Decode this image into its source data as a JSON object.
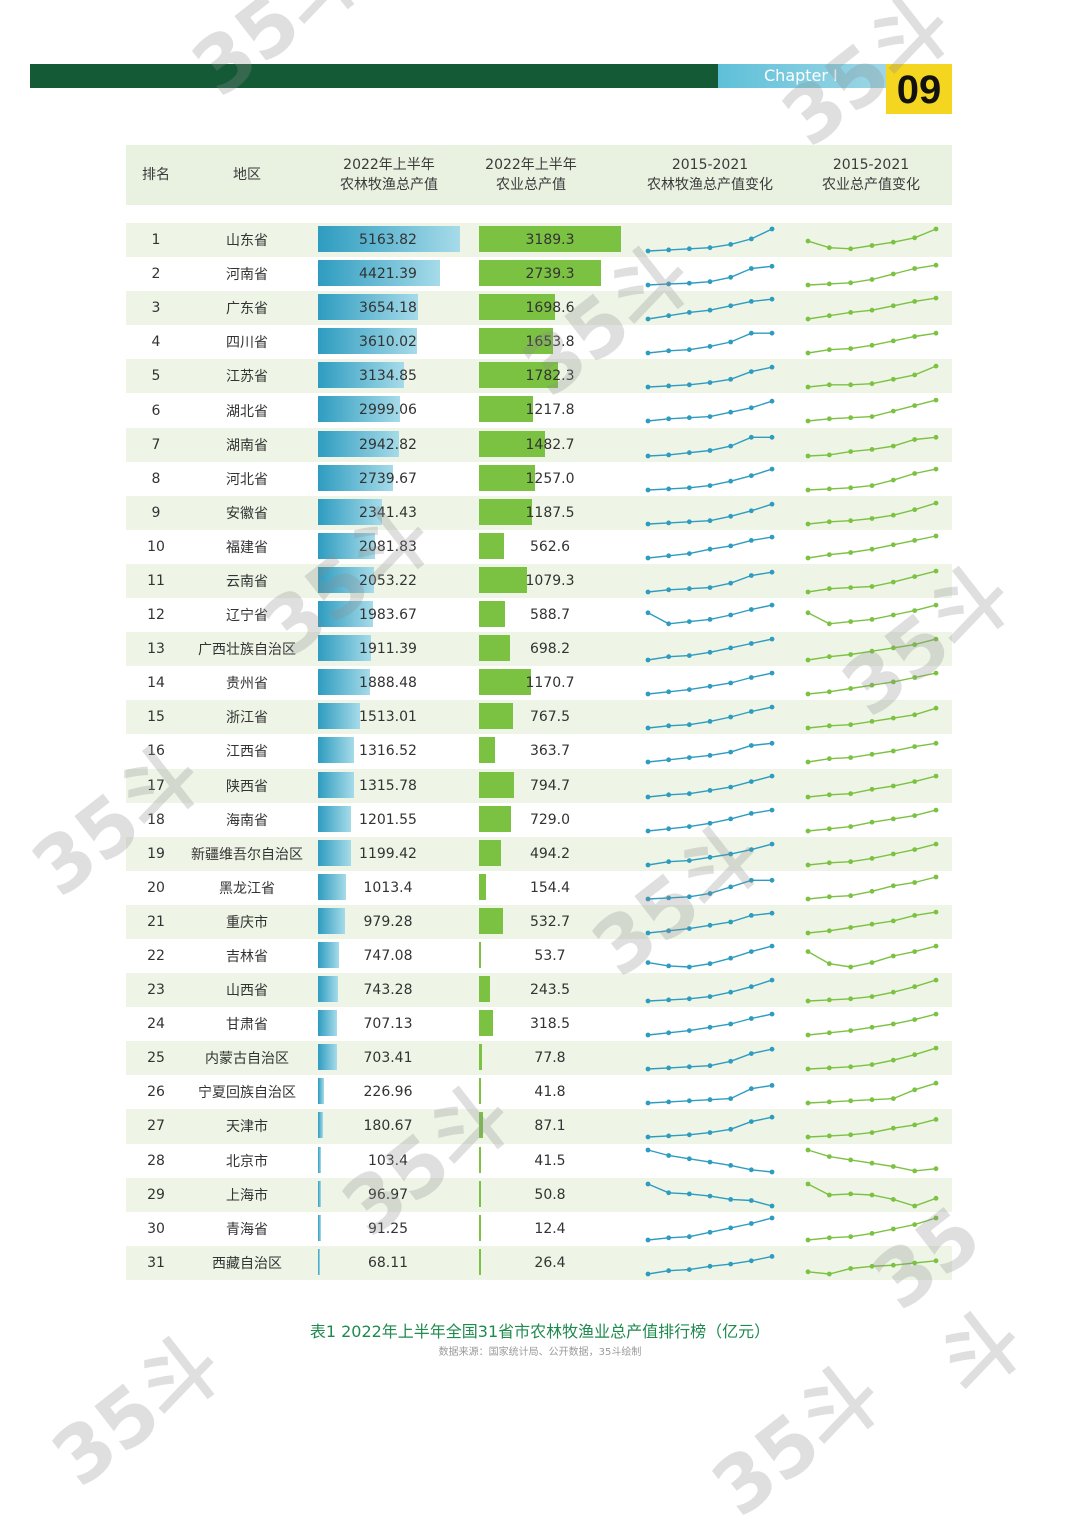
{
  "header": {
    "chapter": "Chapter I",
    "page_number": "09"
  },
  "table": {
    "columns": [
      "排名",
      "地区",
      "2022年上半年\n农林牧渔总产值",
      "2022年上半年\n农业总产值",
      "2015-2021\n农林牧渔总产值变化",
      "2015-2021\n农业总产值变化"
    ],
    "rows": [
      {
        "rank": "1",
        "region": "山东省",
        "total": "5163.82",
        "agri": "3189.3"
      },
      {
        "rank": "2",
        "region": "河南省",
        "total": "4421.39",
        "agri": "2739.3"
      },
      {
        "rank": "3",
        "region": "广东省",
        "total": "3654.18",
        "agri": "1698.6"
      },
      {
        "rank": "4",
        "region": "四川省",
        "total": "3610.02",
        "agri": "1653.8"
      },
      {
        "rank": "5",
        "region": "江苏省",
        "total": "3134.85",
        "agri": "1782.3"
      },
      {
        "rank": "6",
        "region": "湖北省",
        "total": "2999.06",
        "agri": "1217.8"
      },
      {
        "rank": "7",
        "region": "湖南省",
        "total": "2942.82",
        "agri": "1482.7"
      },
      {
        "rank": "8",
        "region": "河北省",
        "total": "2739.67",
        "agri": "1257.0"
      },
      {
        "rank": "9",
        "region": "安徽省",
        "total": "2341.43",
        "agri": "1187.5"
      },
      {
        "rank": "10",
        "region": "福建省",
        "total": "2081.83",
        "agri": "562.6"
      },
      {
        "rank": "11",
        "region": "云南省",
        "total": "2053.22",
        "agri": "1079.3"
      },
      {
        "rank": "12",
        "region": "辽宁省",
        "total": "1983.67",
        "agri": "588.7"
      },
      {
        "rank": "13",
        "region": "广西壮族自治区",
        "total": "1911.39",
        "agri": "698.2"
      },
      {
        "rank": "14",
        "region": "贵州省",
        "total": "1888.48",
        "agri": "1170.7"
      },
      {
        "rank": "15",
        "region": "浙江省",
        "total": "1513.01",
        "agri": "767.5"
      },
      {
        "rank": "16",
        "region": "江西省",
        "total": "1316.52",
        "agri": "363.7"
      },
      {
        "rank": "17",
        "region": "陕西省",
        "total": "1315.78",
        "agri": "794.7"
      },
      {
        "rank": "18",
        "region": "海南省",
        "total": "1201.55",
        "agri": "729.0"
      },
      {
        "rank": "19",
        "region": "新疆维吾尔自治区",
        "total": "1199.42",
        "agri": "494.2"
      },
      {
        "rank": "20",
        "region": "黑龙江省",
        "total": "1013.4",
        "agri": "154.4"
      },
      {
        "rank": "21",
        "region": "重庆市",
        "total": "979.28",
        "agri": "532.7"
      },
      {
        "rank": "22",
        "region": "吉林省",
        "total": "747.08",
        "agri": "53.7"
      },
      {
        "rank": "23",
        "region": "山西省",
        "total": "743.28",
        "agri": "243.5"
      },
      {
        "rank": "24",
        "region": "甘肃省",
        "total": "707.13",
        "agri": "318.5"
      },
      {
        "rank": "25",
        "region": "内蒙古自治区",
        "total": "703.41",
        "agri": "77.8"
      },
      {
        "rank": "26",
        "region": "宁夏回族自治区",
        "total": "226.96",
        "agri": "41.8"
      },
      {
        "rank": "27",
        "region": "天津市",
        "total": "180.67",
        "agri": "87.1"
      },
      {
        "rank": "28",
        "region": "北京市",
        "total": "103.4",
        "agri": "41.5"
      },
      {
        "rank": "29",
        "region": "上海市",
        "total": "96.97",
        "agri": "50.8"
      },
      {
        "rank": "30",
        "region": "青海省",
        "total": "91.25",
        "agri": "12.4"
      },
      {
        "rank": "31",
        "region": "西藏自治区",
        "total": "68.11",
        "agri": "26.4"
      }
    ]
  },
  "chart_data": {
    "type": "table",
    "series": [
      {
        "name": "2022年上半年农林牧渔总产值",
        "values": [
          5163.82,
          4421.39,
          3654.18,
          3610.02,
          3134.85,
          2999.06,
          2942.82,
          2739.67,
          2341.43,
          2081.83,
          2053.22,
          1983.67,
          1911.39,
          1888.48,
          1513.01,
          1316.52,
          1315.78,
          1201.55,
          1199.42,
          1013.4,
          979.28,
          747.08,
          743.28,
          707.13,
          703.41,
          226.96,
          180.67,
          103.4,
          96.97,
          91.25,
          68.11
        ]
      },
      {
        "name": "2022年上半年农业总产值",
        "values": [
          3189.3,
          2739.3,
          1698.6,
          1653.8,
          1782.3,
          1217.8,
          1482.7,
          1257.0,
          1187.5,
          562.6,
          1079.3,
          588.7,
          698.2,
          1170.7,
          767.5,
          363.7,
          794.7,
          729.0,
          494.2,
          154.4,
          532.7,
          53.7,
          243.5,
          318.5,
          77.8,
          41.8,
          87.1,
          41.5,
          50.8,
          12.4,
          26.4
        ]
      }
    ],
    "trend_total": [
      [
        0,
        0.05,
        0.1,
        0.15,
        0.3,
        0.55,
        1
      ],
      [
        0,
        0.05,
        0.08,
        0.15,
        0.35,
        0.75,
        0.85
      ],
      [
        0,
        0.15,
        0.3,
        0.4,
        0.6,
        0.8,
        0.9
      ],
      [
        0,
        0.1,
        0.15,
        0.3,
        0.5,
        0.9,
        0.9
      ],
      [
        0,
        0.05,
        0.1,
        0.2,
        0.35,
        0.7,
        0.9
      ],
      [
        0,
        0.1,
        0.15,
        0.2,
        0.4,
        0.6,
        0.9
      ],
      [
        0,
        0.05,
        0.15,
        0.25,
        0.45,
        0.85,
        0.85
      ],
      [
        0,
        0.05,
        0.1,
        0.2,
        0.4,
        0.65,
        0.95
      ],
      [
        0,
        0.05,
        0.1,
        0.15,
        0.35,
        0.6,
        0.9
      ],
      [
        0,
        0.1,
        0.2,
        0.4,
        0.55,
        0.8,
        0.95
      ],
      [
        0,
        0.1,
        0.15,
        0.2,
        0.4,
        0.75,
        0.9
      ],
      [
        0.6,
        0.1,
        0.2,
        0.3,
        0.5,
        0.75,
        0.95
      ],
      [
        0,
        0.15,
        0.2,
        0.35,
        0.55,
        0.75,
        0.95
      ],
      [
        0,
        0.1,
        0.2,
        0.35,
        0.5,
        0.75,
        0.95
      ],
      [
        0,
        0.1,
        0.15,
        0.3,
        0.5,
        0.75,
        0.95
      ],
      [
        0,
        0.1,
        0.2,
        0.3,
        0.45,
        0.75,
        0.85
      ],
      [
        0,
        0.1,
        0.15,
        0.3,
        0.45,
        0.7,
        0.95
      ],
      [
        0,
        0.1,
        0.2,
        0.35,
        0.55,
        0.8,
        0.95
      ],
      [
        0,
        0.15,
        0.2,
        0.35,
        0.5,
        0.7,
        0.95
      ],
      [
        0,
        0.05,
        0.1,
        0.25,
        0.55,
        0.85,
        0.85
      ],
      [
        0,
        0.1,
        0.2,
        0.35,
        0.5,
        0.8,
        0.9
      ],
      [
        0.2,
        0.05,
        0,
        0.15,
        0.4,
        0.7,
        0.95
      ],
      [
        0,
        0.05,
        0.1,
        0.2,
        0.4,
        0.65,
        0.95
      ],
      [
        0,
        0.1,
        0.2,
        0.35,
        0.5,
        0.75,
        0.95
      ],
      [
        0,
        0.05,
        0.1,
        0.15,
        0.35,
        0.7,
        0.9
      ],
      [
        0,
        0.05,
        0.1,
        0.15,
        0.2,
        0.65,
        0.8
      ],
      [
        0,
        0.05,
        0.1,
        0.2,
        0.35,
        0.7,
        0.9
      ],
      [
        1,
        0.75,
        0.6,
        0.45,
        0.3,
        0.1,
        0
      ],
      [
        1,
        0.6,
        0.55,
        0.45,
        0.3,
        0.25,
        0
      ],
      [
        0,
        0.1,
        0.15,
        0.35,
        0.55,
        0.75,
        1
      ],
      [
        0,
        0.15,
        0.2,
        0.35,
        0.45,
        0.6,
        0.8
      ]
    ],
    "trend_agri": [
      [
        0.45,
        0.15,
        0.1,
        0.25,
        0.4,
        0.6,
        1
      ],
      [
        0,
        0.05,
        0.1,
        0.25,
        0.5,
        0.75,
        0.9
      ],
      [
        0,
        0.15,
        0.3,
        0.4,
        0.6,
        0.8,
        0.95
      ],
      [
        0,
        0.15,
        0.2,
        0.35,
        0.55,
        0.75,
        0.9
      ],
      [
        0,
        0.1,
        0.1,
        0.15,
        0.35,
        0.55,
        0.95
      ],
      [
        0,
        0.1,
        0.15,
        0.2,
        0.45,
        0.7,
        0.95
      ],
      [
        0,
        0.05,
        0.2,
        0.3,
        0.45,
        0.75,
        0.85
      ],
      [
        0,
        0.05,
        0.1,
        0.2,
        0.45,
        0.75,
        0.95
      ],
      [
        0,
        0.1,
        0.15,
        0.25,
        0.4,
        0.65,
        0.95
      ],
      [
        0,
        0.15,
        0.25,
        0.4,
        0.6,
        0.8,
        1
      ],
      [
        0,
        0.15,
        0.2,
        0.25,
        0.45,
        0.7,
        0.95
      ],
      [
        0.6,
        0.1,
        0.2,
        0.3,
        0.5,
        0.7,
        0.95
      ],
      [
        0,
        0.15,
        0.25,
        0.4,
        0.55,
        0.7,
        0.95
      ],
      [
        0,
        0.1,
        0.25,
        0.4,
        0.55,
        0.75,
        0.95
      ],
      [
        0,
        0.1,
        0.15,
        0.3,
        0.45,
        0.6,
        0.9
      ],
      [
        0,
        0.15,
        0.2,
        0.35,
        0.5,
        0.7,
        0.85
      ],
      [
        0,
        0.1,
        0.15,
        0.35,
        0.5,
        0.7,
        0.95
      ],
      [
        0,
        0.1,
        0.2,
        0.4,
        0.55,
        0.7,
        0.95
      ],
      [
        0,
        0.1,
        0.15,
        0.3,
        0.5,
        0.7,
        0.95
      ],
      [
        0,
        0.1,
        0.15,
        0.35,
        0.6,
        0.75,
        1
      ],
      [
        0,
        0.1,
        0.25,
        0.4,
        0.55,
        0.8,
        0.95
      ],
      [
        0.7,
        0.15,
        0,
        0.2,
        0.5,
        0.7,
        0.95
      ],
      [
        0,
        0.05,
        0.1,
        0.2,
        0.4,
        0.65,
        0.95
      ],
      [
        0,
        0.1,
        0.2,
        0.35,
        0.5,
        0.7,
        0.95
      ],
      [
        0,
        0.05,
        0.1,
        0.2,
        0.4,
        0.65,
        0.95
      ],
      [
        0,
        0.05,
        0.1,
        0.15,
        0.2,
        0.6,
        0.9
      ],
      [
        0,
        0.05,
        0.1,
        0.2,
        0.4,
        0.55,
        0.8
      ],
      [
        1,
        0.7,
        0.55,
        0.4,
        0.25,
        0.05,
        0.15
      ],
      [
        1,
        0.5,
        0.55,
        0.5,
        0.3,
        0,
        0.35
      ],
      [
        0,
        0.1,
        0.15,
        0.3,
        0.5,
        0.7,
        1
      ],
      [
        0.1,
        0,
        0.25,
        0.35,
        0.4,
        0.5,
        0.6
      ]
    ],
    "colors": {
      "total": "#2e9cc0",
      "agri": "#7cc242"
    }
  },
  "caption": "表1  2022年上半年全国31省市农林牧渔业总产值排行榜（亿元）",
  "source": "数据来源：国家统计局、公开数据，35斗绘制",
  "watermark": "35斗"
}
